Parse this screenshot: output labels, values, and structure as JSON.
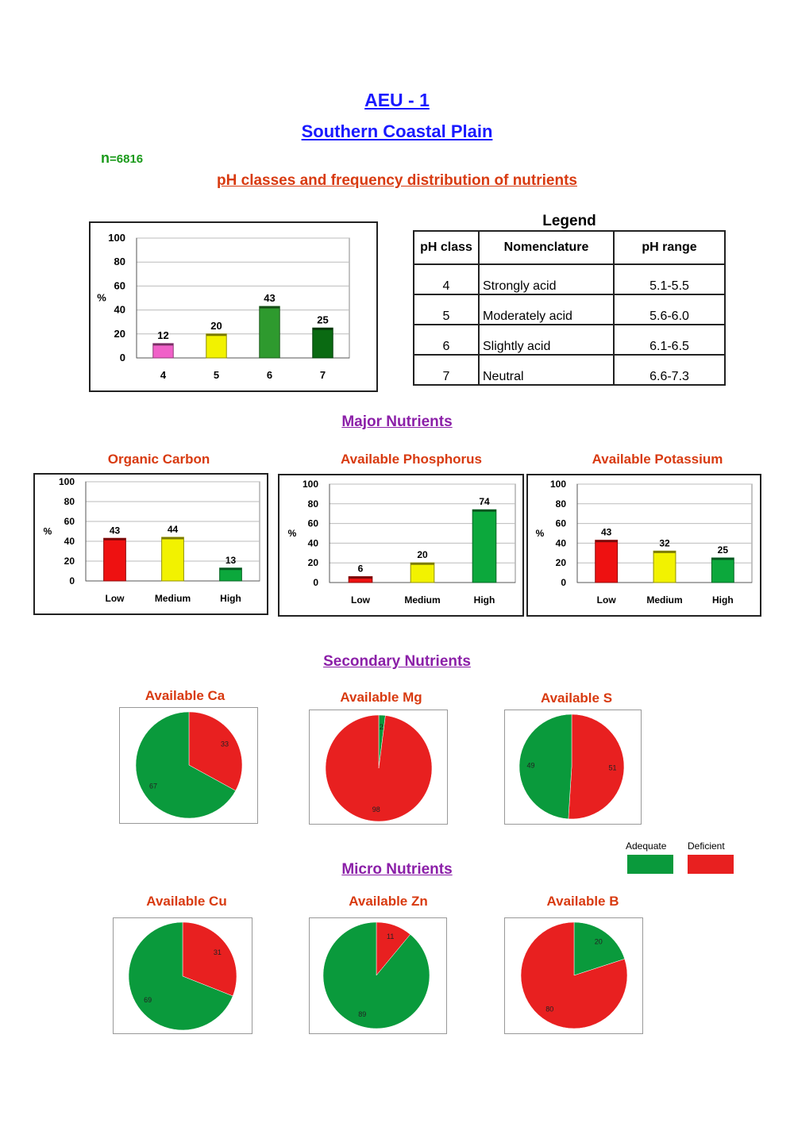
{
  "header": {
    "title": "AEU - 1",
    "region": "Southern Coastal Plain",
    "n_prefix": "n",
    "n_value": "=6816",
    "subtitle": "pH classes and frequency distribution of nutrients"
  },
  "sections": {
    "major": "Major Nutrients",
    "secondary": "Secondary Nutrients",
    "micro": "Micro Nutrients"
  },
  "legend": {
    "title": "Legend",
    "headers": [
      "pH class",
      "Nomenclature",
      "pH range"
    ],
    "rows": [
      [
        "4",
        "Strongly acid",
        "5.1-5.5"
      ],
      [
        "5",
        "Moderately acid",
        "5.6-6.0"
      ],
      [
        "6",
        "Slightly acid",
        "6.1-6.5"
      ],
      [
        "7",
        "Neutral",
        "6.6-7.3"
      ]
    ]
  },
  "pie_legend": {
    "adequate": "Adequate",
    "deficient": "Deficient",
    "adequate_color": "#0a9a3c",
    "deficient_color": "#e82020"
  },
  "chart_data": [
    {
      "type": "bar",
      "title": "",
      "ylabel": "%",
      "ylim": [
        0,
        100
      ],
      "yticks": [
        0,
        20,
        40,
        60,
        80,
        100
      ],
      "categories": [
        "4",
        "5",
        "6",
        "7"
      ],
      "values": [
        12,
        20,
        43,
        25
      ],
      "colors": [
        "#f060c8",
        "#f2f200",
        "#2e9a2e",
        "#0a6a12"
      ],
      "grid": true
    },
    {
      "type": "bar",
      "title": "Organic Carbon",
      "ylabel": "%",
      "ylim": [
        0,
        100
      ],
      "yticks": [
        0,
        20,
        40,
        60,
        80,
        100
      ],
      "categories": [
        "Low",
        "Medium",
        "High"
      ],
      "values": [
        43,
        44,
        13
      ],
      "colors": [
        "#ee1111",
        "#f2f200",
        "#0ca83c"
      ],
      "grid": true
    },
    {
      "type": "bar",
      "title": "Available Phosphorus",
      "ylabel": "%",
      "ylim": [
        0,
        100
      ],
      "yticks": [
        0,
        20,
        40,
        60,
        80,
        100
      ],
      "categories": [
        "Low",
        "Medium",
        "High"
      ],
      "values": [
        6,
        20,
        74
      ],
      "colors": [
        "#ee1111",
        "#f2f200",
        "#0ca83c"
      ],
      "grid": true
    },
    {
      "type": "bar",
      "title": "Available Potassium",
      "ylabel": "%",
      "ylim": [
        0,
        100
      ],
      "yticks": [
        0,
        20,
        40,
        60,
        80,
        100
      ],
      "categories": [
        "Low",
        "Medium",
        "High"
      ],
      "values": [
        43,
        32,
        25
      ],
      "colors": [
        "#ee1111",
        "#f2f200",
        "#0ca83c"
      ],
      "grid": true
    },
    {
      "type": "pie",
      "title": "Available Ca",
      "labels": [
        "Deficient",
        "Adequate"
      ],
      "values": [
        33,
        67
      ]
    },
    {
      "type": "pie",
      "title": "Available Mg",
      "labels": [
        "Adequate",
        "Deficient"
      ],
      "values": [
        2,
        98
      ]
    },
    {
      "type": "pie",
      "title": "Available S",
      "labels": [
        "Deficient",
        "Adequate"
      ],
      "values": [
        51,
        49
      ]
    },
    {
      "type": "pie",
      "title": "Available Cu",
      "labels": [
        "Deficient",
        "Adequate"
      ],
      "values": [
        31,
        69
      ]
    },
    {
      "type": "pie",
      "title": "Available Zn",
      "labels": [
        "Deficient",
        "Adequate"
      ],
      "values": [
        11,
        89
      ]
    },
    {
      "type": "pie",
      "title": "Available B",
      "labels": [
        "Adequate",
        "Deficient"
      ],
      "values": [
        20,
        80
      ]
    }
  ]
}
